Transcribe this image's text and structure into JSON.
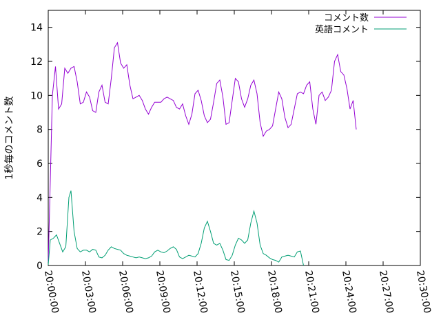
{
  "chart_data": {
    "type": "line",
    "title": "",
    "xlabel": "",
    "ylabel": "1秒毎のコメント数",
    "x_ticks": [
      "20:00:00",
      "20:03:00",
      "20:06:00",
      "20:09:00",
      "20:12:00",
      "20:15:00",
      "20:18:00",
      "20:21:00",
      "20:24:00",
      "20:27:00",
      "20:30:00"
    ],
    "y_ticks": [
      "0",
      "2",
      "4",
      "6",
      "8",
      "10",
      "12",
      "14"
    ],
    "xlim": [
      "20:00:00",
      "20:30:00"
    ],
    "ylim": [
      0,
      15
    ],
    "legend_position": "top-right",
    "grid": false,
    "series": [
      {
        "name": "コメント数",
        "color": "#9400d3",
        "points": [
          [
            "20:00:00",
            0.2
          ],
          [
            "20:00:10",
            5.0
          ],
          [
            "20:00:20",
            10.0
          ],
          [
            "20:00:35",
            11.7
          ],
          [
            "20:00:50",
            9.2
          ],
          [
            "20:01:05",
            9.5
          ],
          [
            "20:01:20",
            11.6
          ],
          [
            "20:01:35",
            11.3
          ],
          [
            "20:01:50",
            11.6
          ],
          [
            "20:02:05",
            11.7
          ],
          [
            "20:02:20",
            10.8
          ],
          [
            "20:02:35",
            9.5
          ],
          [
            "20:02:50",
            9.6
          ],
          [
            "20:03:05",
            10.2
          ],
          [
            "20:03:20",
            9.9
          ],
          [
            "20:03:35",
            9.1
          ],
          [
            "20:03:50",
            9.0
          ],
          [
            "20:04:05",
            10.2
          ],
          [
            "20:04:20",
            10.6
          ],
          [
            "20:04:35",
            9.6
          ],
          [
            "20:04:50",
            9.5
          ],
          [
            "20:05:05",
            11.0
          ],
          [
            "20:05:20",
            12.8
          ],
          [
            "20:05:35",
            13.1
          ],
          [
            "20:05:50",
            11.9
          ],
          [
            "20:06:05",
            11.6
          ],
          [
            "20:06:20",
            11.8
          ],
          [
            "20:06:35",
            10.6
          ],
          [
            "20:06:50",
            9.8
          ],
          [
            "20:07:05",
            9.9
          ],
          [
            "20:07:20",
            10.0
          ],
          [
            "20:07:35",
            9.7
          ],
          [
            "20:07:50",
            9.2
          ],
          [
            "20:08:05",
            8.9
          ],
          [
            "20:08:20",
            9.3
          ],
          [
            "20:08:35",
            9.6
          ],
          [
            "20:08:50",
            9.6
          ],
          [
            "20:09:05",
            9.6
          ],
          [
            "20:09:20",
            9.8
          ],
          [
            "20:09:35",
            9.9
          ],
          [
            "20:09:50",
            9.8
          ],
          [
            "20:10:05",
            9.7
          ],
          [
            "20:10:20",
            9.3
          ],
          [
            "20:10:35",
            9.2
          ],
          [
            "20:10:50",
            9.5
          ],
          [
            "20:11:05",
            8.8
          ],
          [
            "20:11:20",
            8.3
          ],
          [
            "20:11:35",
            8.9
          ],
          [
            "20:11:50",
            10.1
          ],
          [
            "20:12:05",
            10.3
          ],
          [
            "20:12:20",
            9.7
          ],
          [
            "20:12:35",
            8.8
          ],
          [
            "20:12:50",
            8.4
          ],
          [
            "20:13:05",
            8.6
          ],
          [
            "20:13:20",
            9.6
          ],
          [
            "20:13:35",
            10.7
          ],
          [
            "20:13:50",
            10.9
          ],
          [
            "20:14:05",
            9.9
          ],
          [
            "20:14:20",
            8.3
          ],
          [
            "20:14:35",
            8.4
          ],
          [
            "20:14:50",
            9.7
          ],
          [
            "20:15:05",
            11.0
          ],
          [
            "20:15:20",
            10.8
          ],
          [
            "20:15:35",
            9.8
          ],
          [
            "20:15:50",
            9.3
          ],
          [
            "20:16:05",
            9.8
          ],
          [
            "20:16:20",
            10.6
          ],
          [
            "20:16:35",
            10.9
          ],
          [
            "20:16:50",
            10.1
          ],
          [
            "20:17:05",
            8.4
          ],
          [
            "20:17:20",
            7.6
          ],
          [
            "20:17:35",
            7.9
          ],
          [
            "20:17:50",
            8.0
          ],
          [
            "20:18:05",
            8.2
          ],
          [
            "20:18:20",
            9.2
          ],
          [
            "20:18:35",
            10.2
          ],
          [
            "20:18:50",
            9.8
          ],
          [
            "20:19:05",
            8.7
          ],
          [
            "20:19:20",
            8.1
          ],
          [
            "20:19:35",
            8.3
          ],
          [
            "20:19:50",
            9.2
          ],
          [
            "20:20:05",
            10.1
          ],
          [
            "20:20:20",
            10.2
          ],
          [
            "20:20:35",
            10.1
          ],
          [
            "20:20:50",
            10.6
          ],
          [
            "20:21:05",
            10.8
          ],
          [
            "20:21:20",
            9.2
          ],
          [
            "20:21:35",
            8.3
          ],
          [
            "20:21:50",
            10.0
          ],
          [
            "20:22:05",
            10.2
          ],
          [
            "20:22:20",
            9.7
          ],
          [
            "20:22:35",
            9.9
          ],
          [
            "20:22:50",
            10.3
          ],
          [
            "20:23:05",
            12.0
          ],
          [
            "20:23:20",
            12.4
          ],
          [
            "20:23:35",
            11.4
          ],
          [
            "20:23:50",
            11.2
          ],
          [
            "20:24:05",
            10.4
          ],
          [
            "20:24:20",
            9.2
          ],
          [
            "20:24:35",
            9.7
          ],
          [
            "20:24:50",
            8.0
          ]
        ]
      },
      {
        "name": "英語コメント",
        "color": "#009e73",
        "points": [
          [
            "20:00:00",
            0.05
          ],
          [
            "20:00:10",
            1.5
          ],
          [
            "20:00:25",
            1.6
          ],
          [
            "20:00:40",
            1.8
          ],
          [
            "20:00:55",
            1.3
          ],
          [
            "20:01:10",
            0.8
          ],
          [
            "20:01:25",
            1.1
          ],
          [
            "20:01:40",
            4.0
          ],
          [
            "20:01:50",
            4.4
          ],
          [
            "20:02:05",
            2.0
          ],
          [
            "20:02:20",
            1.0
          ],
          [
            "20:02:35",
            0.8
          ],
          [
            "20:02:50",
            0.9
          ],
          [
            "20:03:05",
            0.9
          ],
          [
            "20:03:20",
            0.8
          ],
          [
            "20:03:35",
            0.95
          ],
          [
            "20:03:50",
            0.9
          ],
          [
            "20:04:05",
            0.5
          ],
          [
            "20:04:20",
            0.45
          ],
          [
            "20:04:35",
            0.6
          ],
          [
            "20:04:50",
            0.9
          ],
          [
            "20:05:05",
            1.1
          ],
          [
            "20:05:20",
            1.0
          ],
          [
            "20:05:35",
            0.95
          ],
          [
            "20:05:50",
            0.9
          ],
          [
            "20:06:05",
            0.7
          ],
          [
            "20:06:20",
            0.6
          ],
          [
            "20:06:35",
            0.55
          ],
          [
            "20:06:50",
            0.5
          ],
          [
            "20:07:05",
            0.45
          ],
          [
            "20:07:20",
            0.5
          ],
          [
            "20:07:35",
            0.45
          ],
          [
            "20:07:50",
            0.4
          ],
          [
            "20:08:05",
            0.45
          ],
          [
            "20:08:20",
            0.55
          ],
          [
            "20:08:35",
            0.8
          ],
          [
            "20:08:50",
            0.9
          ],
          [
            "20:09:05",
            0.8
          ],
          [
            "20:09:20",
            0.75
          ],
          [
            "20:09:35",
            0.85
          ],
          [
            "20:09:50",
            1.0
          ],
          [
            "20:10:05",
            1.1
          ],
          [
            "20:10:20",
            0.95
          ],
          [
            "20:10:35",
            0.5
          ],
          [
            "20:10:50",
            0.4
          ],
          [
            "20:11:05",
            0.5
          ],
          [
            "20:11:20",
            0.6
          ],
          [
            "20:11:35",
            0.55
          ],
          [
            "20:11:50",
            0.5
          ],
          [
            "20:12:05",
            0.7
          ],
          [
            "20:12:20",
            1.3
          ],
          [
            "20:12:35",
            2.2
          ],
          [
            "20:12:50",
            2.6
          ],
          [
            "20:13:05",
            2.0
          ],
          [
            "20:13:20",
            1.3
          ],
          [
            "20:13:35",
            1.2
          ],
          [
            "20:13:50",
            1.3
          ],
          [
            "20:14:05",
            0.9
          ],
          [
            "20:14:20",
            0.35
          ],
          [
            "20:14:35",
            0.3
          ],
          [
            "20:14:50",
            0.6
          ],
          [
            "20:15:05",
            1.2
          ],
          [
            "20:15:20",
            1.6
          ],
          [
            "20:15:35",
            1.5
          ],
          [
            "20:15:50",
            1.3
          ],
          [
            "20:16:05",
            1.5
          ],
          [
            "20:16:20",
            2.5
          ],
          [
            "20:16:35",
            3.2
          ],
          [
            "20:16:50",
            2.5
          ],
          [
            "20:17:05",
            1.2
          ],
          [
            "20:17:20",
            0.7
          ],
          [
            "20:17:35",
            0.6
          ],
          [
            "20:17:50",
            0.45
          ],
          [
            "20:18:05",
            0.35
          ],
          [
            "20:18:20",
            0.3
          ],
          [
            "20:18:35",
            0.2
          ],
          [
            "20:18:50",
            0.5
          ],
          [
            "20:19:05",
            0.55
          ],
          [
            "20:19:20",
            0.6
          ],
          [
            "20:19:35",
            0.55
          ],
          [
            "20:19:50",
            0.5
          ],
          [
            "20:20:05",
            0.8
          ],
          [
            "20:20:20",
            0.85
          ],
          [
            "20:20:35",
            0.0
          ]
        ]
      }
    ]
  }
}
